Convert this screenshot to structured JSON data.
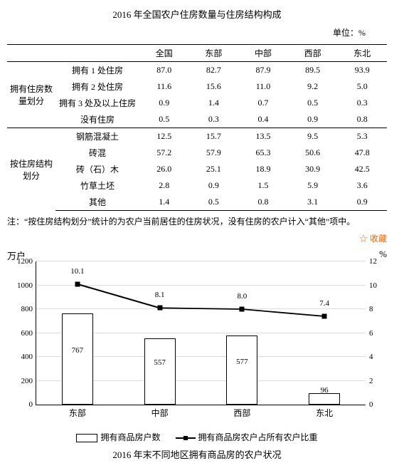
{
  "title": "2016 年全国农户住房数量与住房结构构成",
  "unit": "单位：%",
  "cols": [
    "全国",
    "东部",
    "中部",
    "西部",
    "东北"
  ],
  "group1": {
    "name": "拥有住房数量划分",
    "rows": [
      {
        "l": "拥有 1 处住房",
        "v": [
          87.0,
          82.7,
          87.9,
          89.5,
          93.9
        ]
      },
      {
        "l": "拥有 2 处住房",
        "v": [
          11.6,
          15.6,
          11.0,
          9.2,
          5.0
        ]
      },
      {
        "l": "拥有 3 处及以上住房",
        "v": [
          0.9,
          1.4,
          0.7,
          0.5,
          0.3
        ]
      },
      {
        "l": "没有住房",
        "v": [
          0.5,
          0.3,
          0.4,
          0.9,
          0.8
        ]
      }
    ]
  },
  "group2": {
    "name": "按住房结构划分",
    "rows": [
      {
        "l": "钢筋混凝土",
        "v": [
          12.5,
          15.7,
          13.5,
          9.5,
          5.3
        ]
      },
      {
        "l": "砖混",
        "v": [
          57.2,
          57.9,
          65.3,
          50.6,
          47.8
        ]
      },
      {
        "l": "砖（石）木",
        "v": [
          26.0,
          25.1,
          18.9,
          30.9,
          42.5
        ]
      },
      {
        "l": "竹草土坯",
        "v": [
          2.8,
          0.9,
          1.5,
          5.9,
          3.6
        ]
      },
      {
        "l": "其他",
        "v": [
          1.4,
          0.5,
          0.8,
          3.1,
          0.9
        ]
      }
    ]
  },
  "note": "注：“按住房结构划分”统计的为农户当前居住的住房状况，没有住房的农户计入“其他”项中。",
  "fav": "收藏",
  "chart": {
    "ylab_left": "万户",
    "ylab_right": "%",
    "y_left": {
      "min": 0,
      "max": 1200,
      "step": 200
    },
    "y_right": {
      "min": 0,
      "max": 12,
      "step": 2
    },
    "cats": [
      "东部",
      "中部",
      "西部",
      "东北"
    ],
    "bars": [
      767,
      557,
      577,
      96
    ],
    "line": [
      10.1,
      8.1,
      8.0,
      7.4
    ],
    "legend": {
      "bar": "拥有商品房户数",
      "line": "拥有商品房农户占所有农户比重"
    },
    "footer": "2016 年末不同地区拥有商品房的农户状况"
  }
}
